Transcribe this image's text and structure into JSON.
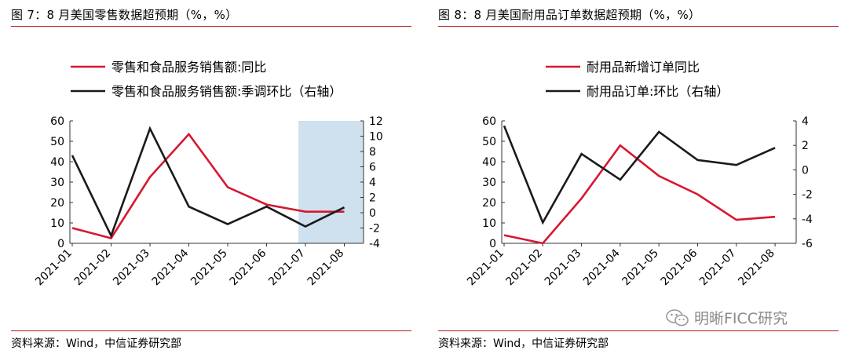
{
  "left": {
    "title": "图 7：8 月美国零售数据超预期（%，%）",
    "source": "资料来源：Wind，中信证券研究部",
    "chart_data": {
      "type": "line",
      "categories": [
        "2021-01",
        "2021-02",
        "2021-03",
        "2021-04",
        "2021-05",
        "2021-06",
        "2021-07",
        "2021-08"
      ],
      "ylim_left": [
        0,
        60
      ],
      "yticks_left": [
        "0",
        "10",
        "20",
        "30",
        "40",
        "50",
        "60"
      ],
      "ylim_right": [
        -4,
        12
      ],
      "yticks_right": [
        "-4",
        "-2",
        "0",
        "2",
        "4",
        "6",
        "8",
        "10",
        "12"
      ],
      "highlight_categories": [
        "2021-07",
        "2021-08"
      ],
      "series": [
        {
          "name": "零售和食品服务销售额:同比",
          "axis": "left",
          "color": "#d7172f",
          "values": [
            7.5,
            2.5,
            32.5,
            53.5,
            27.5,
            19,
            15.5,
            15.5
          ]
        },
        {
          "name": "零售和食品服务销售额:季调环比（右轴）",
          "axis": "right",
          "color": "#1a1a1a",
          "values": [
            7.5,
            -3,
            11,
            0.8,
            -1.5,
            0.8,
            -1.8,
            0.7
          ]
        }
      ]
    }
  },
  "right": {
    "title": "图 8：8 月美国耐用品订单数据超预期（%，%）",
    "source": "资料来源：Wind，中信证券研究部",
    "watermark": "明晰FICC研究",
    "chart_data": {
      "type": "line",
      "categories": [
        "2021-01",
        "2021-02",
        "2021-03",
        "2021-04",
        "2021-05",
        "2021-06",
        "2021-07",
        "2021-08"
      ],
      "ylim_left": [
        0,
        60
      ],
      "yticks_left": [
        "0",
        "10",
        "20",
        "30",
        "40",
        "50",
        "60"
      ],
      "ylim_right": [
        -6,
        4
      ],
      "yticks_right": [
        "-6",
        "-4",
        "-2",
        "0",
        "2",
        "4"
      ],
      "series": [
        {
          "name": "耐用品新增订单同比",
          "axis": "left",
          "color": "#d7172f",
          "values": [
            4,
            0,
            22,
            48,
            33,
            24,
            11.5,
            13
          ]
        },
        {
          "name": "耐用品订单:环比（右轴）",
          "axis": "right",
          "color": "#1a1a1a",
          "values": [
            3.6,
            -4.3,
            1.3,
            -0.8,
            3.1,
            0.8,
            0.4,
            1.8
          ]
        }
      ]
    }
  }
}
